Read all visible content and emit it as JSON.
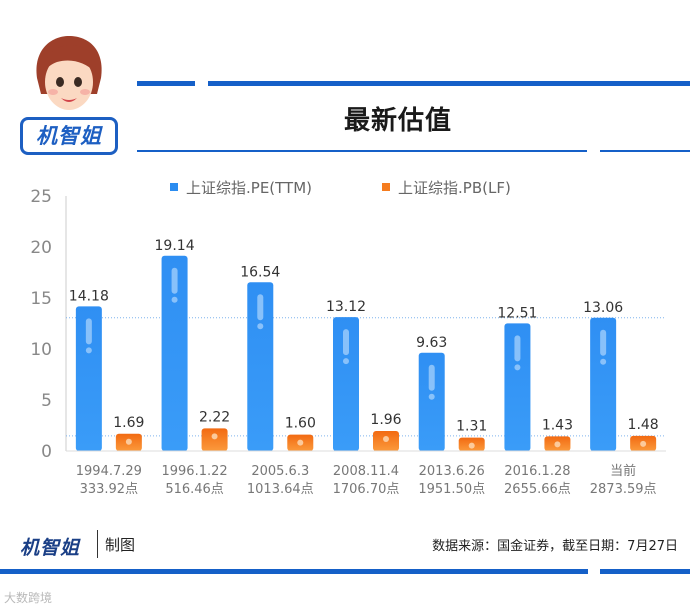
{
  "brand": {
    "logo_text": "机智姐",
    "footer_logo_text": "机智姐",
    "made_by": "制图"
  },
  "title": "最新估值",
  "footer": {
    "source": "数据来源：国金证券，截至日期：7月27日"
  },
  "watermark": "大数跨境",
  "colors": {
    "accent": "#1560c8",
    "pe": "#2b8cf0",
    "pb": "#f57c1f"
  },
  "chart_data": {
    "type": "bar",
    "categories": [
      [
        "1994.7.29",
        "333.92点"
      ],
      [
        "1996.1.22",
        "516.46点"
      ],
      [
        "2005.6.3",
        "1013.64点"
      ],
      [
        "2008.11.4",
        "1706.70点"
      ],
      [
        "2013.6.26",
        "1951.50点"
      ],
      [
        "2016.1.28",
        "2655.66点"
      ],
      [
        "当前",
        "2873.59点"
      ]
    ],
    "series": [
      {
        "name": "上证综指.PE(TTM)",
        "values": [
          14.18,
          19.14,
          16.54,
          13.12,
          9.63,
          12.51,
          13.06
        ],
        "labels": [
          "14.18",
          "19.14",
          "16.54",
          "13.12",
          "9.63",
          "12.51",
          "13.06"
        ]
      },
      {
        "name": "上证综指.PB(LF)",
        "values": [
          1.69,
          2.22,
          1.6,
          1.96,
          1.31,
          1.43,
          1.48
        ],
        "labels": [
          "1.69",
          "2.22",
          "1.60",
          "1.96",
          "1.31",
          "1.43",
          "1.48"
        ]
      }
    ],
    "ylim": [
      0,
      25
    ],
    "yticks": [
      0,
      5,
      10,
      15,
      20,
      25
    ],
    "reference_lines": [
      13.06,
      1.48
    ],
    "legend": "top",
    "grid": false
  }
}
